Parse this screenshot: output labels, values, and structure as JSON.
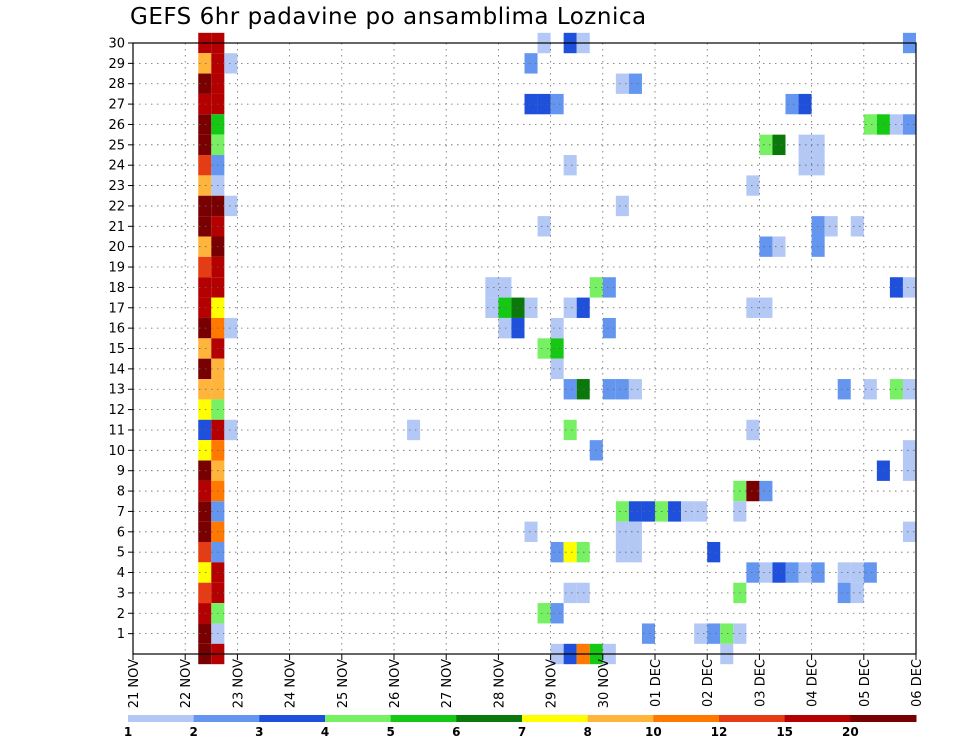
{
  "chart_data": {
    "type": "heatmap",
    "title": "GEFS 6hr padavine po ansamblima Loznica",
    "xlabel": "",
    "ylabel": "",
    "x_tick_labels": [
      "21 NOV",
      "22 NOV",
      "23 NOV",
      "24 NOV",
      "25 NOV",
      "26 NOV",
      "27 NOV",
      "28 NOV",
      "29 NOV",
      "30 NOV",
      "01 DEC",
      "02 DEC",
      "03 DEC",
      "04 DEC",
      "05 DEC",
      "06 DEC"
    ],
    "y_tick_labels": [
      "1",
      "2",
      "3",
      "4",
      "5",
      "6",
      "7",
      "8",
      "9",
      "10",
      "11",
      "12",
      "13",
      "14",
      "15",
      "16",
      "17",
      "18",
      "19",
      "20",
      "21",
      "22",
      "23",
      "24",
      "25",
      "26",
      "27",
      "28",
      "29",
      "30"
    ],
    "x_range": [
      "21 NOV 00z",
      "06 DEC 00z"
    ],
    "time_step_hours": 6,
    "y_range": [
      0,
      30
    ],
    "grid": true,
    "legend_position": "bottom",
    "legend_labels": [
      "1",
      "2",
      "3",
      "4",
      "5",
      "6",
      "7",
      "8",
      "10",
      "12",
      "15",
      "20"
    ],
    "legend_colors": [
      "#b4c8f5",
      "#6496f0",
      "#1e50dc",
      "#78f064",
      "#14c814",
      "#0a780a",
      "#ffff00",
      "#ffb43c",
      "#ff7800",
      "#e63c14",
      "#b40000",
      "#780000"
    ],
    "legend_bin_upper": [
      2,
      3,
      4,
      5,
      6,
      7,
      8,
      10,
      12,
      15,
      20,
      30
    ],
    "cells": [
      {
        "member": 30,
        "day": 22.375,
        "value": 15
      },
      {
        "member": 30,
        "day": 22.625,
        "value": 15
      },
      {
        "member": 30,
        "day": 28.875,
        "value": 1.5
      },
      {
        "member": 30,
        "day": 29.375,
        "value": 3.5
      },
      {
        "member": 30,
        "day": 29.625,
        "value": 1.5
      },
      {
        "member": 30,
        "day": 35.875,
        "value": 2.5
      },
      {
        "member": 29,
        "day": 22.375,
        "value": 9
      },
      {
        "member": 29,
        "day": 22.625,
        "value": 15
      },
      {
        "member": 29,
        "day": 22.875,
        "value": 1.5
      },
      {
        "member": 29,
        "day": 28.625,
        "value": 2.5
      },
      {
        "member": 28,
        "day": 22.375,
        "value": 25
      },
      {
        "member": 28,
        "day": 22.625,
        "value": 15
      },
      {
        "member": 28,
        "day": 30.375,
        "value": 1.5
      },
      {
        "member": 28,
        "day": 30.625,
        "value": 2.5
      },
      {
        "member": 27,
        "day": 22.375,
        "value": 15
      },
      {
        "member": 27,
        "day": 22.625,
        "value": 15
      },
      {
        "member": 27,
        "day": 28.625,
        "value": 3.5
      },
      {
        "member": 27,
        "day": 28.875,
        "value": 3.5
      },
      {
        "member": 27,
        "day": 29.125,
        "value": 2.5
      },
      {
        "member": 27,
        "day": 33.625,
        "value": 2.5
      },
      {
        "member": 27,
        "day": 33.875,
        "value": 3.5
      },
      {
        "member": 26,
        "day": 22.375,
        "value": 25
      },
      {
        "member": 26,
        "day": 22.625,
        "value": 5.5
      },
      {
        "member": 26,
        "day": 35.125,
        "value": 4.5
      },
      {
        "member": 26,
        "day": 35.375,
        "value": 5.5
      },
      {
        "member": 26,
        "day": 35.625,
        "value": 1.5
      },
      {
        "member": 26,
        "day": 35.875,
        "value": 2.5
      },
      {
        "member": 25,
        "day": 22.375,
        "value": 25
      },
      {
        "member": 25,
        "day": 22.625,
        "value": 4.5
      },
      {
        "member": 25,
        "day": 33.125,
        "value": 4.5
      },
      {
        "member": 25,
        "day": 33.375,
        "value": 6.5
      },
      {
        "member": 25,
        "day": 33.875,
        "value": 1.5
      },
      {
        "member": 25,
        "day": 34.125,
        "value": 1.5
      },
      {
        "member": 24,
        "day": 22.375,
        "value": 13
      },
      {
        "member": 24,
        "day": 22.625,
        "value": 2.5
      },
      {
        "member": 24,
        "day": 29.375,
        "value": 1.5
      },
      {
        "member": 24,
        "day": 33.875,
        "value": 1.5
      },
      {
        "member": 24,
        "day": 34.125,
        "value": 1.5
      },
      {
        "member": 23,
        "day": 22.375,
        "value": 9
      },
      {
        "member": 23,
        "day": 22.625,
        "value": 1.5
      },
      {
        "member": 23,
        "day": 32.875,
        "value": 1.5
      },
      {
        "member": 22,
        "day": 22.375,
        "value": 25
      },
      {
        "member": 22,
        "day": 22.625,
        "value": 25
      },
      {
        "member": 22,
        "day": 22.875,
        "value": 1.5
      },
      {
        "member": 22,
        "day": 30.375,
        "value": 1.5
      },
      {
        "member": 21,
        "day": 22.375,
        "value": 25
      },
      {
        "member": 21,
        "day": 22.625,
        "value": 15
      },
      {
        "member": 21,
        "day": 28.875,
        "value": 1.5
      },
      {
        "member": 21,
        "day": 34.125,
        "value": 2.5
      },
      {
        "member": 21,
        "day": 34.375,
        "value": 1.5
      },
      {
        "member": 21,
        "day": 34.875,
        "value": 1.5
      },
      {
        "member": 20,
        "day": 22.375,
        "value": 9
      },
      {
        "member": 20,
        "day": 22.625,
        "value": 25
      },
      {
        "member": 20,
        "day": 33.125,
        "value": 2.5
      },
      {
        "member": 20,
        "day": 33.375,
        "value": 1.5
      },
      {
        "member": 20,
        "day": 34.125,
        "value": 2.5
      },
      {
        "member": 19,
        "day": 22.375,
        "value": 13
      },
      {
        "member": 19,
        "day": 22.625,
        "value": 15
      },
      {
        "member": 18,
        "day": 22.375,
        "value": 15
      },
      {
        "member": 18,
        "day": 22.625,
        "value": 15
      },
      {
        "member": 18,
        "day": 27.875,
        "value": 1.5
      },
      {
        "member": 18,
        "day": 28.125,
        "value": 1.5
      },
      {
        "member": 18,
        "day": 29.875,
        "value": 4.5
      },
      {
        "member": 18,
        "day": 30.125,
        "value": 2.5
      },
      {
        "member": 18,
        "day": 35.625,
        "value": 3.5
      },
      {
        "member": 18,
        "day": 35.875,
        "value": 1.5
      },
      {
        "member": 17,
        "day": 22.375,
        "value": 15
      },
      {
        "member": 17,
        "day": 22.625,
        "value": 7.5
      },
      {
        "member": 17,
        "day": 27.875,
        "value": 1.5
      },
      {
        "member": 17,
        "day": 28.125,
        "value": 5.5
      },
      {
        "member": 17,
        "day": 28.375,
        "value": 6.5
      },
      {
        "member": 17,
        "day": 28.625,
        "value": 1.5
      },
      {
        "member": 17,
        "day": 29.375,
        "value": 1.5
      },
      {
        "member": 17,
        "day": 29.625,
        "value": 3.5
      },
      {
        "member": 17,
        "day": 32.875,
        "value": 1.5
      },
      {
        "member": 17,
        "day": 33.125,
        "value": 1.5
      },
      {
        "member": 16,
        "day": 22.375,
        "value": 25
      },
      {
        "member": 16,
        "day": 22.625,
        "value": 11
      },
      {
        "member": 16,
        "day": 22.875,
        "value": 1.5
      },
      {
        "member": 16,
        "day": 28.125,
        "value": 1.5
      },
      {
        "member": 16,
        "day": 28.375,
        "value": 3.5
      },
      {
        "member": 16,
        "day": 29.125,
        "value": 1.5
      },
      {
        "member": 16,
        "day": 30.125,
        "value": 2.5
      },
      {
        "member": 15,
        "day": 22.375,
        "value": 9
      },
      {
        "member": 15,
        "day": 22.625,
        "value": 15
      },
      {
        "member": 15,
        "day": 28.875,
        "value": 4.5
      },
      {
        "member": 15,
        "day": 29.125,
        "value": 5.5
      },
      {
        "member": 14,
        "day": 22.375,
        "value": 25
      },
      {
        "member": 14,
        "day": 22.625,
        "value": 9
      },
      {
        "member": 14,
        "day": 29.125,
        "value": 1.5
      },
      {
        "member": 13,
        "day": 22.375,
        "value": 9
      },
      {
        "member": 13,
        "day": 22.625,
        "value": 9
      },
      {
        "member": 13,
        "day": 29.375,
        "value": 2.5
      },
      {
        "member": 13,
        "day": 29.625,
        "value": 6.5
      },
      {
        "member": 13,
        "day": 30.125,
        "value": 2.5
      },
      {
        "member": 13,
        "day": 30.375,
        "value": 2.5
      },
      {
        "member": 13,
        "day": 30.625,
        "value": 1.5
      },
      {
        "member": 13,
        "day": 34.625,
        "value": 2.5
      },
      {
        "member": 13,
        "day": 35.125,
        "value": 1.5
      },
      {
        "member": 13,
        "day": 35.625,
        "value": 4.5
      },
      {
        "member": 13,
        "day": 35.875,
        "value": 1.5
      },
      {
        "member": 12,
        "day": 22.375,
        "value": 7.5
      },
      {
        "member": 12,
        "day": 22.625,
        "value": 4.5
      },
      {
        "member": 11,
        "day": 22.375,
        "value": 3.5
      },
      {
        "member": 11,
        "day": 22.625,
        "value": 15
      },
      {
        "member": 11,
        "day": 22.875,
        "value": 1.5
      },
      {
        "member": 11,
        "day": 26.375,
        "value": 1.5
      },
      {
        "member": 11,
        "day": 29.375,
        "value": 4.5
      },
      {
        "member": 11,
        "day": 32.875,
        "value": 1.5
      },
      {
        "member": 10,
        "day": 22.375,
        "value": 7.5
      },
      {
        "member": 10,
        "day": 22.625,
        "value": 11
      },
      {
        "member": 10,
        "day": 29.875,
        "value": 2.5
      },
      {
        "member": 10,
        "day": 35.875,
        "value": 1.5
      },
      {
        "member": 9,
        "day": 22.375,
        "value": 25
      },
      {
        "member": 9,
        "day": 22.625,
        "value": 9
      },
      {
        "member": 9,
        "day": 35.375,
        "value": 3.5
      },
      {
        "member": 9,
        "day": 35.875,
        "value": 1.5
      },
      {
        "member": 8,
        "day": 22.375,
        "value": 15
      },
      {
        "member": 8,
        "day": 22.625,
        "value": 11
      },
      {
        "member": 8,
        "day": 32.625,
        "value": 4.5
      },
      {
        "member": 8,
        "day": 32.875,
        "value": 25
      },
      {
        "member": 8,
        "day": 33.125,
        "value": 2.5
      },
      {
        "member": 7,
        "day": 22.375,
        "value": 25
      },
      {
        "member": 7,
        "day": 22.625,
        "value": 2.5
      },
      {
        "member": 7,
        "day": 30.375,
        "value": 4.5
      },
      {
        "member": 7,
        "day": 30.625,
        "value": 3.5
      },
      {
        "member": 7,
        "day": 30.875,
        "value": 3.5
      },
      {
        "member": 7,
        "day": 31.125,
        "value": 4.5
      },
      {
        "member": 7,
        "day": 31.375,
        "value": 3.5
      },
      {
        "member": 7,
        "day": 31.625,
        "value": 1.5
      },
      {
        "member": 7,
        "day": 31.875,
        "value": 1.5
      },
      {
        "member": 7,
        "day": 32.625,
        "value": 1.5
      },
      {
        "member": 6,
        "day": 22.375,
        "value": 25
      },
      {
        "member": 6,
        "day": 22.625,
        "value": 11
      },
      {
        "member": 6,
        "day": 28.625,
        "value": 1.5
      },
      {
        "member": 6,
        "day": 30.375,
        "value": 1.5
      },
      {
        "member": 6,
        "day": 30.625,
        "value": 1.5
      },
      {
        "member": 6,
        "day": 35.875,
        "value": 1.5
      },
      {
        "member": 5,
        "day": 22.375,
        "value": 13
      },
      {
        "member": 5,
        "day": 22.625,
        "value": 2.5
      },
      {
        "member": 5,
        "day": 29.125,
        "value": 2.5
      },
      {
        "member": 5,
        "day": 29.375,
        "value": 7.5
      },
      {
        "member": 5,
        "day": 29.625,
        "value": 4.5
      },
      {
        "member": 5,
        "day": 30.375,
        "value": 1.5
      },
      {
        "member": 5,
        "day": 30.625,
        "value": 1.5
      },
      {
        "member": 5,
        "day": 32.125,
        "value": 3.5
      },
      {
        "member": 4,
        "day": 22.375,
        "value": 7.5
      },
      {
        "member": 4,
        "day": 22.625,
        "value": 15
      },
      {
        "member": 4,
        "day": 32.875,
        "value": 2.5
      },
      {
        "member": 4,
        "day": 33.125,
        "value": 1.5
      },
      {
        "member": 4,
        "day": 33.375,
        "value": 3.5
      },
      {
        "member": 4,
        "day": 33.625,
        "value": 2.5
      },
      {
        "member": 4,
        "day": 33.875,
        "value": 1.5
      },
      {
        "member": 4,
        "day": 34.125,
        "value": 2.5
      },
      {
        "member": 4,
        "day": 34.625,
        "value": 1.5
      },
      {
        "member": 4,
        "day": 34.875,
        "value": 1.5
      },
      {
        "member": 4,
        "day": 35.125,
        "value": 2.5
      },
      {
        "member": 3,
        "day": 22.375,
        "value": 13
      },
      {
        "member": 3,
        "day": 22.625,
        "value": 15
      },
      {
        "member": 3,
        "day": 29.375,
        "value": 1.5
      },
      {
        "member": 3,
        "day": 29.625,
        "value": 1.5
      },
      {
        "member": 3,
        "day": 32.625,
        "value": 4.5
      },
      {
        "member": 3,
        "day": 34.625,
        "value": 2.5
      },
      {
        "member": 3,
        "day": 34.875,
        "value": 1.5
      },
      {
        "member": 2,
        "day": 22.375,
        "value": 15
      },
      {
        "member": 2,
        "day": 22.625,
        "value": 4.5
      },
      {
        "member": 2,
        "day": 28.875,
        "value": 4.5
      },
      {
        "member": 2,
        "day": 29.125,
        "value": 2.5
      },
      {
        "member": 1,
        "day": 22.375,
        "value": 25
      },
      {
        "member": 1,
        "day": 22.625,
        "value": 1.5
      },
      {
        "member": 1,
        "day": 30.875,
        "value": 2.5
      },
      {
        "member": 1,
        "day": 31.875,
        "value": 1.5
      },
      {
        "member": 1,
        "day": 32.125,
        "value": 2.5
      },
      {
        "member": 1,
        "day": 32.375,
        "value": 4.5
      },
      {
        "member": 1,
        "day": 32.625,
        "value": 1.5
      },
      {
        "member": 0,
        "day": 22.375,
        "value": 25
      },
      {
        "member": 0,
        "day": 22.625,
        "value": 15
      },
      {
        "member": 0,
        "day": 29.125,
        "value": 1.5
      },
      {
        "member": 0,
        "day": 29.375,
        "value": 3.5
      },
      {
        "member": 0,
        "day": 29.625,
        "value": 11
      },
      {
        "member": 0,
        "day": 29.875,
        "value": 5.5
      },
      {
        "member": 0,
        "day": 30.125,
        "value": 1.5
      },
      {
        "member": 0,
        "day": 32.375,
        "value": 1.5
      }
    ]
  }
}
